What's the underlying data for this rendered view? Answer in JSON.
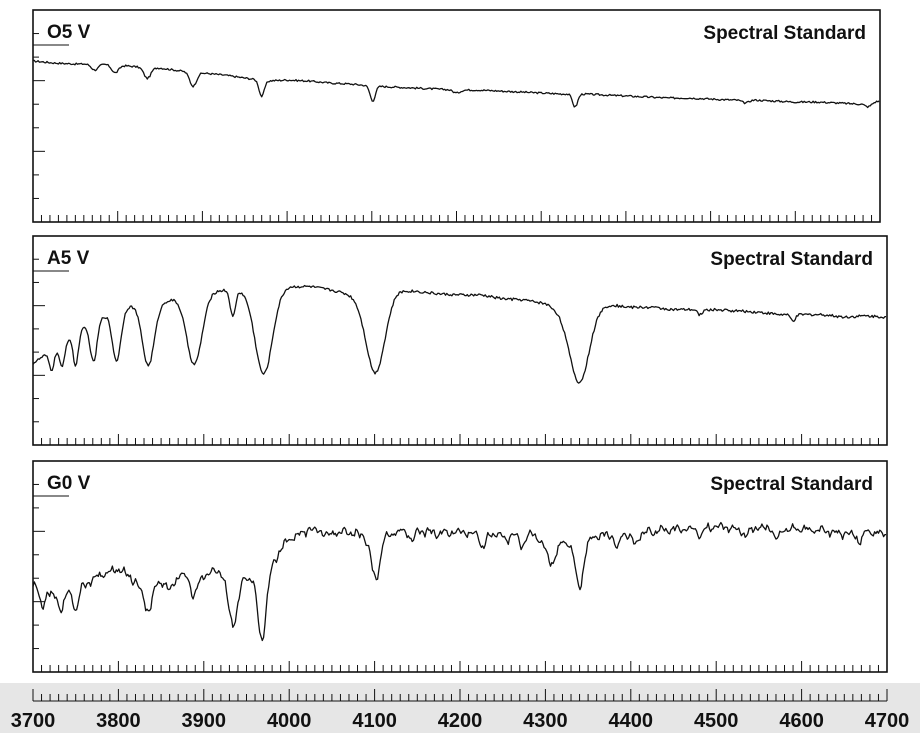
{
  "chart_data": {
    "type": "line",
    "xlabel": "",
    "ylabel": "",
    "xlim": [
      3700,
      4700
    ],
    "x_ticks": [
      "3700",
      "3800",
      "3900",
      "4000",
      "4100",
      "4200",
      "4300",
      "4400",
      "4500",
      "4600",
      "4700"
    ],
    "panels": [
      {
        "title": "O5 V",
        "annotation": "Spectral Standard",
        "series": [
          {
            "x": [
              3700,
              3725,
              3750,
              3775,
              3800,
              3825,
              3850,
              3875,
              3900,
              3925,
              3950,
              3975,
              4000,
              4025,
              4050,
              4075,
              4100,
              4125,
              4150,
              4175,
              4200,
              4225,
              4250,
              4275,
              4300,
              4325,
              4350,
              4375,
              4400,
              4425,
              4450,
              4475,
              4500,
              4525,
              4550,
              4575,
              4600,
              4625,
              4650,
              4675,
              4700
            ],
            "y": [
              0.96,
              0.94,
              0.93,
              0.93,
              0.92,
              0.9,
              0.89,
              0.86,
              0.84,
              0.82,
              0.79,
              0.76,
              0.77,
              0.76,
              0.74,
              0.73,
              0.71,
              0.7,
              0.69,
              0.68,
              0.67,
              0.67,
              0.66,
              0.65,
              0.64,
              0.63,
              0.63,
              0.62,
              0.61,
              0.6,
              0.59,
              0.59,
              0.58,
              0.57,
              0.57,
              0.56,
              0.55,
              0.55,
              0.54,
              0.53,
              0.56
            ],
            "lines": [
              {
                "center": 3773,
                "depth": 0.06,
                "width": 4
              },
              {
                "center": 3797,
                "depth": 0.08,
                "width": 4
              },
              {
                "center": 3835,
                "depth": 0.11,
                "width": 4
              },
              {
                "center": 3889,
                "depth": 0.14,
                "width": 4
              },
              {
                "center": 3970,
                "depth": 0.16,
                "width": 3
              },
              {
                "center": 4101,
                "depth": 0.15,
                "width": 3
              },
              {
                "center": 4200,
                "depth": 0.03,
                "width": 4
              },
              {
                "center": 4340,
                "depth": 0.13,
                "width": 3
              },
              {
                "center": 4541,
                "depth": 0.03,
                "width": 4
              },
              {
                "center": 4686,
                "depth": 0.04,
                "width": 4
              }
            ]
          }
        ]
      },
      {
        "title": "A5 V",
        "annotation": "Spectral Standard",
        "series": [
          {
            "x": [
              3700,
              3725,
              3750,
              3775,
              3800,
              3825,
              3850,
              3875,
              3900,
              3925,
              3950,
              3975,
              4000,
              4025,
              4050,
              4075,
              4100,
              4125,
              4150,
              4175,
              4200,
              4225,
              4250,
              4275,
              4300,
              4325,
              4350,
              4375,
              4400,
              4425,
              4450,
              4475,
              4500,
              4525,
              4550,
              4575,
              4600,
              4625,
              4650,
              4675,
              4700
            ],
            "y": [
              0.3,
              0.42,
              0.55,
              0.66,
              0.75,
              0.79,
              0.8,
              0.85,
              0.89,
              0.9,
              0.9,
              0.88,
              0.93,
              0.93,
              0.9,
              0.86,
              0.82,
              0.9,
              0.89,
              0.87,
              0.86,
              0.86,
              0.83,
              0.82,
              0.79,
              0.7,
              0.74,
              0.78,
              0.76,
              0.76,
              0.74,
              0.74,
              0.74,
              0.73,
              0.72,
              0.7,
              0.7,
              0.7,
              0.68,
              0.69,
              0.68
            ],
            "lines": [
              {
                "center": 3722,
                "depth": 0.16,
                "width": 3
              },
              {
                "center": 3734,
                "depth": 0.2,
                "width": 3
              },
              {
                "center": 3750,
                "depth": 0.27,
                "width": 3
              },
              {
                "center": 3771,
                "depth": 0.33,
                "width": 4
              },
              {
                "center": 3798,
                "depth": 0.42,
                "width": 5
              },
              {
                "center": 3835,
                "depth": 0.51,
                "width": 7
              },
              {
                "center": 3889,
                "depth": 0.58,
                "width": 9
              },
              {
                "center": 3934,
                "depth": 0.22,
                "width": 3
              },
              {
                "center": 3970,
                "depth": 0.67,
                "width": 10
              },
              {
                "center": 4101,
                "depth": 0.6,
                "width": 11
              },
              {
                "center": 4340,
                "depth": 0.58,
                "width": 11
              },
              {
                "center": 4481,
                "depth": 0.04,
                "width": 3
              },
              {
                "center": 4590,
                "depth": 0.05,
                "width": 3
              }
            ]
          }
        ]
      },
      {
        "title": "G0 V",
        "annotation": "Spectral Standard",
        "series": [
          {
            "x": [
              3700,
              3725,
              3750,
              3775,
              3800,
              3825,
              3850,
              3875,
              3900,
              3925,
              3950,
              3975,
              4000,
              4025,
              4050,
              4075,
              4100,
              4125,
              4150,
              4175,
              4200,
              4225,
              4250,
              4275,
              4300,
              4325,
              4350,
              4375,
              4400,
              4425,
              4450,
              4475,
              4500,
              4525,
              4550,
              4575,
              4600,
              4625,
              4650,
              4675,
              4700
            ],
            "y": [
              0.5,
              0.42,
              0.45,
              0.55,
              0.6,
              0.5,
              0.52,
              0.56,
              0.56,
              0.6,
              0.55,
              0.6,
              0.8,
              0.86,
              0.85,
              0.83,
              0.8,
              0.84,
              0.85,
              0.83,
              0.85,
              0.82,
              0.84,
              0.83,
              0.8,
              0.78,
              0.8,
              0.83,
              0.83,
              0.84,
              0.86,
              0.86,
              0.88,
              0.86,
              0.87,
              0.86,
              0.86,
              0.85,
              0.83,
              0.84,
              0.83
            ],
            "lines": [
              {
                "center": 3710,
                "depth": 0.12,
                "width": 3
              },
              {
                "center": 3733,
                "depth": 0.1,
                "width": 3
              },
              {
                "center": 3750,
                "depth": 0.12,
                "width": 3
              },
              {
                "center": 3835,
                "depth": 0.18,
                "width": 5
              },
              {
                "center": 3860,
                "depth": 0.08,
                "width": 4
              },
              {
                "center": 3889,
                "depth": 0.14,
                "width": 4
              },
              {
                "center": 3934,
                "depth": 0.34,
                "width": 6
              },
              {
                "center": 3968,
                "depth": 0.45,
                "width": 5
              },
              {
                "center": 4045,
                "depth": 0.05,
                "width": 3
              },
              {
                "center": 4101,
                "depth": 0.27,
                "width": 5
              },
              {
                "center": 4144,
                "depth": 0.06,
                "width": 3
              },
              {
                "center": 4227,
                "depth": 0.08,
                "width": 3
              },
              {
                "center": 4254,
                "depth": 0.06,
                "width": 3
              },
              {
                "center": 4272,
                "depth": 0.08,
                "width": 3
              },
              {
                "center": 4307,
                "depth": 0.15,
                "width": 6
              },
              {
                "center": 4340,
                "depth": 0.3,
                "width": 5
              },
              {
                "center": 4384,
                "depth": 0.1,
                "width": 3
              },
              {
                "center": 4405,
                "depth": 0.07,
                "width": 3
              },
              {
                "center": 4482,
                "depth": 0.05,
                "width": 3
              },
              {
                "center": 4535,
                "depth": 0.06,
                "width": 3
              },
              {
                "center": 4571,
                "depth": 0.07,
                "width": 3
              },
              {
                "center": 4668,
                "depth": 0.06,
                "width": 3
              }
            ]
          }
        ]
      }
    ]
  }
}
